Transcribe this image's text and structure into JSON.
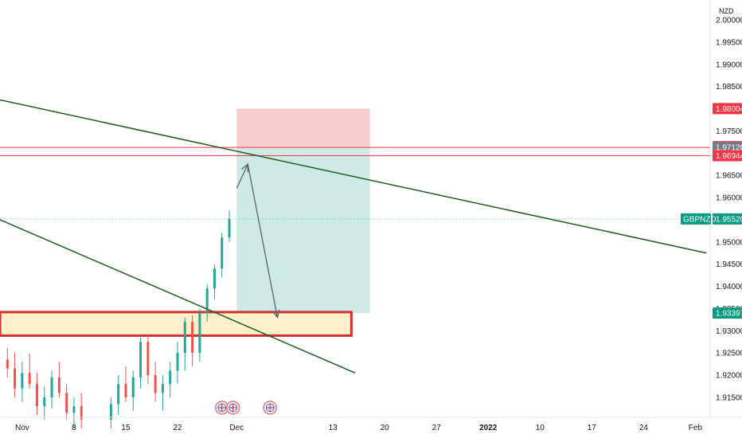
{
  "chart_data": {
    "type": "candlestick",
    "symbol": "GBPNZD",
    "currency": "NZD",
    "ylim": [
      1.9105,
      2.0045
    ],
    "y_ticks": [
      "1.91500",
      "1.92000",
      "1.92500",
      "1.93000",
      "1.93500",
      "1.94000",
      "1.94500",
      "1.95000",
      "1.95500",
      "1.96000",
      "1.96500",
      "1.97000",
      "1.97500",
      "1.98000",
      "1.98500",
      "1.99000",
      "1.99500",
      "2.00000"
    ],
    "x_ticks": [
      "Nov",
      "8",
      "15",
      "22",
      "Dec",
      "13",
      "20",
      "27",
      "2022",
      "10",
      "17",
      "24",
      "Feb"
    ],
    "x_range_days": [
      -3,
      93
    ],
    "x_tick_days": [
      0,
      7,
      14,
      21,
      29,
      42,
      49,
      56,
      63,
      70,
      77,
      84,
      91
    ],
    "candles": [
      {
        "d": -2,
        "o": 1.9235,
        "h": 1.9262,
        "l": 1.9195,
        "c": 1.9215
      },
      {
        "d": -1,
        "o": 1.9215,
        "h": 1.925,
        "l": 1.915,
        "c": 1.917
      },
      {
        "d": 0,
        "o": 1.917,
        "h": 1.923,
        "l": 1.914,
        "c": 1.9205
      },
      {
        "d": 1,
        "o": 1.9205,
        "h": 1.9248,
        "l": 1.917,
        "c": 1.918
      },
      {
        "d": 2,
        "o": 1.918,
        "h": 1.9205,
        "l": 1.911,
        "c": 1.913
      },
      {
        "d": 3,
        "o": 1.913,
        "h": 1.9175,
        "l": 1.91,
        "c": 1.915
      },
      {
        "d": 4,
        "o": 1.915,
        "h": 1.921,
        "l": 1.9125,
        "c": 1.9195
      },
      {
        "d": 5,
        "o": 1.9195,
        "h": 1.923,
        "l": 1.915,
        "c": 1.916
      },
      {
        "d": 6,
        "o": 1.916,
        "h": 1.918,
        "l": 1.91,
        "c": 1.9115
      },
      {
        "d": 7,
        "o": 1.9115,
        "h": 1.915,
        "l": 1.908,
        "c": 1.913
      },
      {
        "d": 8,
        "o": 1.913,
        "h": 1.916,
        "l": 1.908,
        "c": 1.91
      },
      {
        "d": 12,
        "o": 1.91,
        "h": 1.915,
        "l": 1.908,
        "c": 1.9135
      },
      {
        "d": 13,
        "o": 1.9135,
        "h": 1.92,
        "l": 1.911,
        "c": 1.918
      },
      {
        "d": 14,
        "o": 1.918,
        "h": 1.922,
        "l": 1.914,
        "c": 1.915
      },
      {
        "d": 15,
        "o": 1.915,
        "h": 1.921,
        "l": 1.912,
        "c": 1.9195
      },
      {
        "d": 16,
        "o": 1.9195,
        "h": 1.9285,
        "l": 1.917,
        "c": 1.9275
      },
      {
        "d": 17,
        "o": 1.9275,
        "h": 1.929,
        "l": 1.918,
        "c": 1.92
      },
      {
        "d": 18,
        "o": 1.92,
        "h": 1.923,
        "l": 1.914,
        "c": 1.916
      },
      {
        "d": 19,
        "o": 1.916,
        "h": 1.92,
        "l": 1.912,
        "c": 1.918
      },
      {
        "d": 20,
        "o": 1.918,
        "h": 1.923,
        "l": 1.915,
        "c": 1.921
      },
      {
        "d": 21,
        "o": 1.921,
        "h": 1.9275,
        "l": 1.918,
        "c": 1.925
      },
      {
        "d": 22,
        "o": 1.925,
        "h": 1.933,
        "l": 1.921,
        "c": 1.932
      },
      {
        "d": 23,
        "o": 1.932,
        "h": 1.9335,
        "l": 1.922,
        "c": 1.925
      },
      {
        "d": 24,
        "o": 1.925,
        "h": 1.935,
        "l": 1.923,
        "c": 1.934
      },
      {
        "d": 25,
        "o": 1.934,
        "h": 1.9405,
        "l": 1.932,
        "c": 1.9395
      },
      {
        "d": 26,
        "o": 1.9395,
        "h": 1.945,
        "l": 1.937,
        "c": 1.944
      },
      {
        "d": 27,
        "o": 1.944,
        "h": 1.952,
        "l": 1.942,
        "c": 1.951
      },
      {
        "d": 28,
        "o": 1.951,
        "h": 1.9572,
        "l": 1.95,
        "c": 1.9552
      }
    ],
    "bull_color": "#26a69a",
    "bear_color": "#ef5350",
    "price_tags": [
      {
        "label": "1.98004",
        "value": 1.98004,
        "color": "#f23645"
      },
      {
        "label": "1.97147",
        "value": 1.97147,
        "color": "#f23645"
      },
      {
        "label": "1.97128",
        "value": 1.97128,
        "color": "#787b86"
      },
      {
        "label": "1.96944",
        "value": 1.96944,
        "color": "#f23645"
      },
      {
        "label": "1.95520",
        "value": 1.9552,
        "color": "#089981",
        "name": "GBPNZD"
      },
      {
        "label": "1.93397",
        "value": 1.93397,
        "color": "#089981"
      }
    ],
    "horizontal_lines": [
      1.97128,
      1.96944
    ],
    "horizontal_line_color": "#f23645",
    "last_price_line": 1.9552,
    "trendlines": [
      {
        "from": {
          "d": -3,
          "v": 1.982
        },
        "to": {
          "d": 92.5,
          "v": 1.9475
        },
        "color": "#1b5e20"
      },
      {
        "from": {
          "d": -3,
          "v": 1.955
        },
        "to": {
          "d": 45,
          "v": 1.9205
        },
        "color": "#1b5e20"
      }
    ],
    "short_position": {
      "from_day": 29,
      "to_day": 47,
      "stop": 1.98004,
      "entry": 1.97128,
      "target": 1.93397,
      "stop_color": "#f8cdcd",
      "target_color": "#cdeae6"
    },
    "demand_zone": {
      "from_day": -3,
      "to_day": 44.5,
      "top": 1.9342,
      "bottom": 1.9289,
      "fill": "#fff0cc",
      "border": "#d32f2f"
    },
    "projection": {
      "points": [
        {
          "d": 29,
          "v": 1.9621
        },
        {
          "d": 30.5,
          "v": 1.9675
        },
        {
          "d": 34.5,
          "v": 1.933
        }
      ],
      "color": "#5d606b"
    },
    "event_icons": [
      {
        "d": 27
      },
      {
        "d": 28.5
      },
      {
        "d": 33.5
      }
    ]
  }
}
